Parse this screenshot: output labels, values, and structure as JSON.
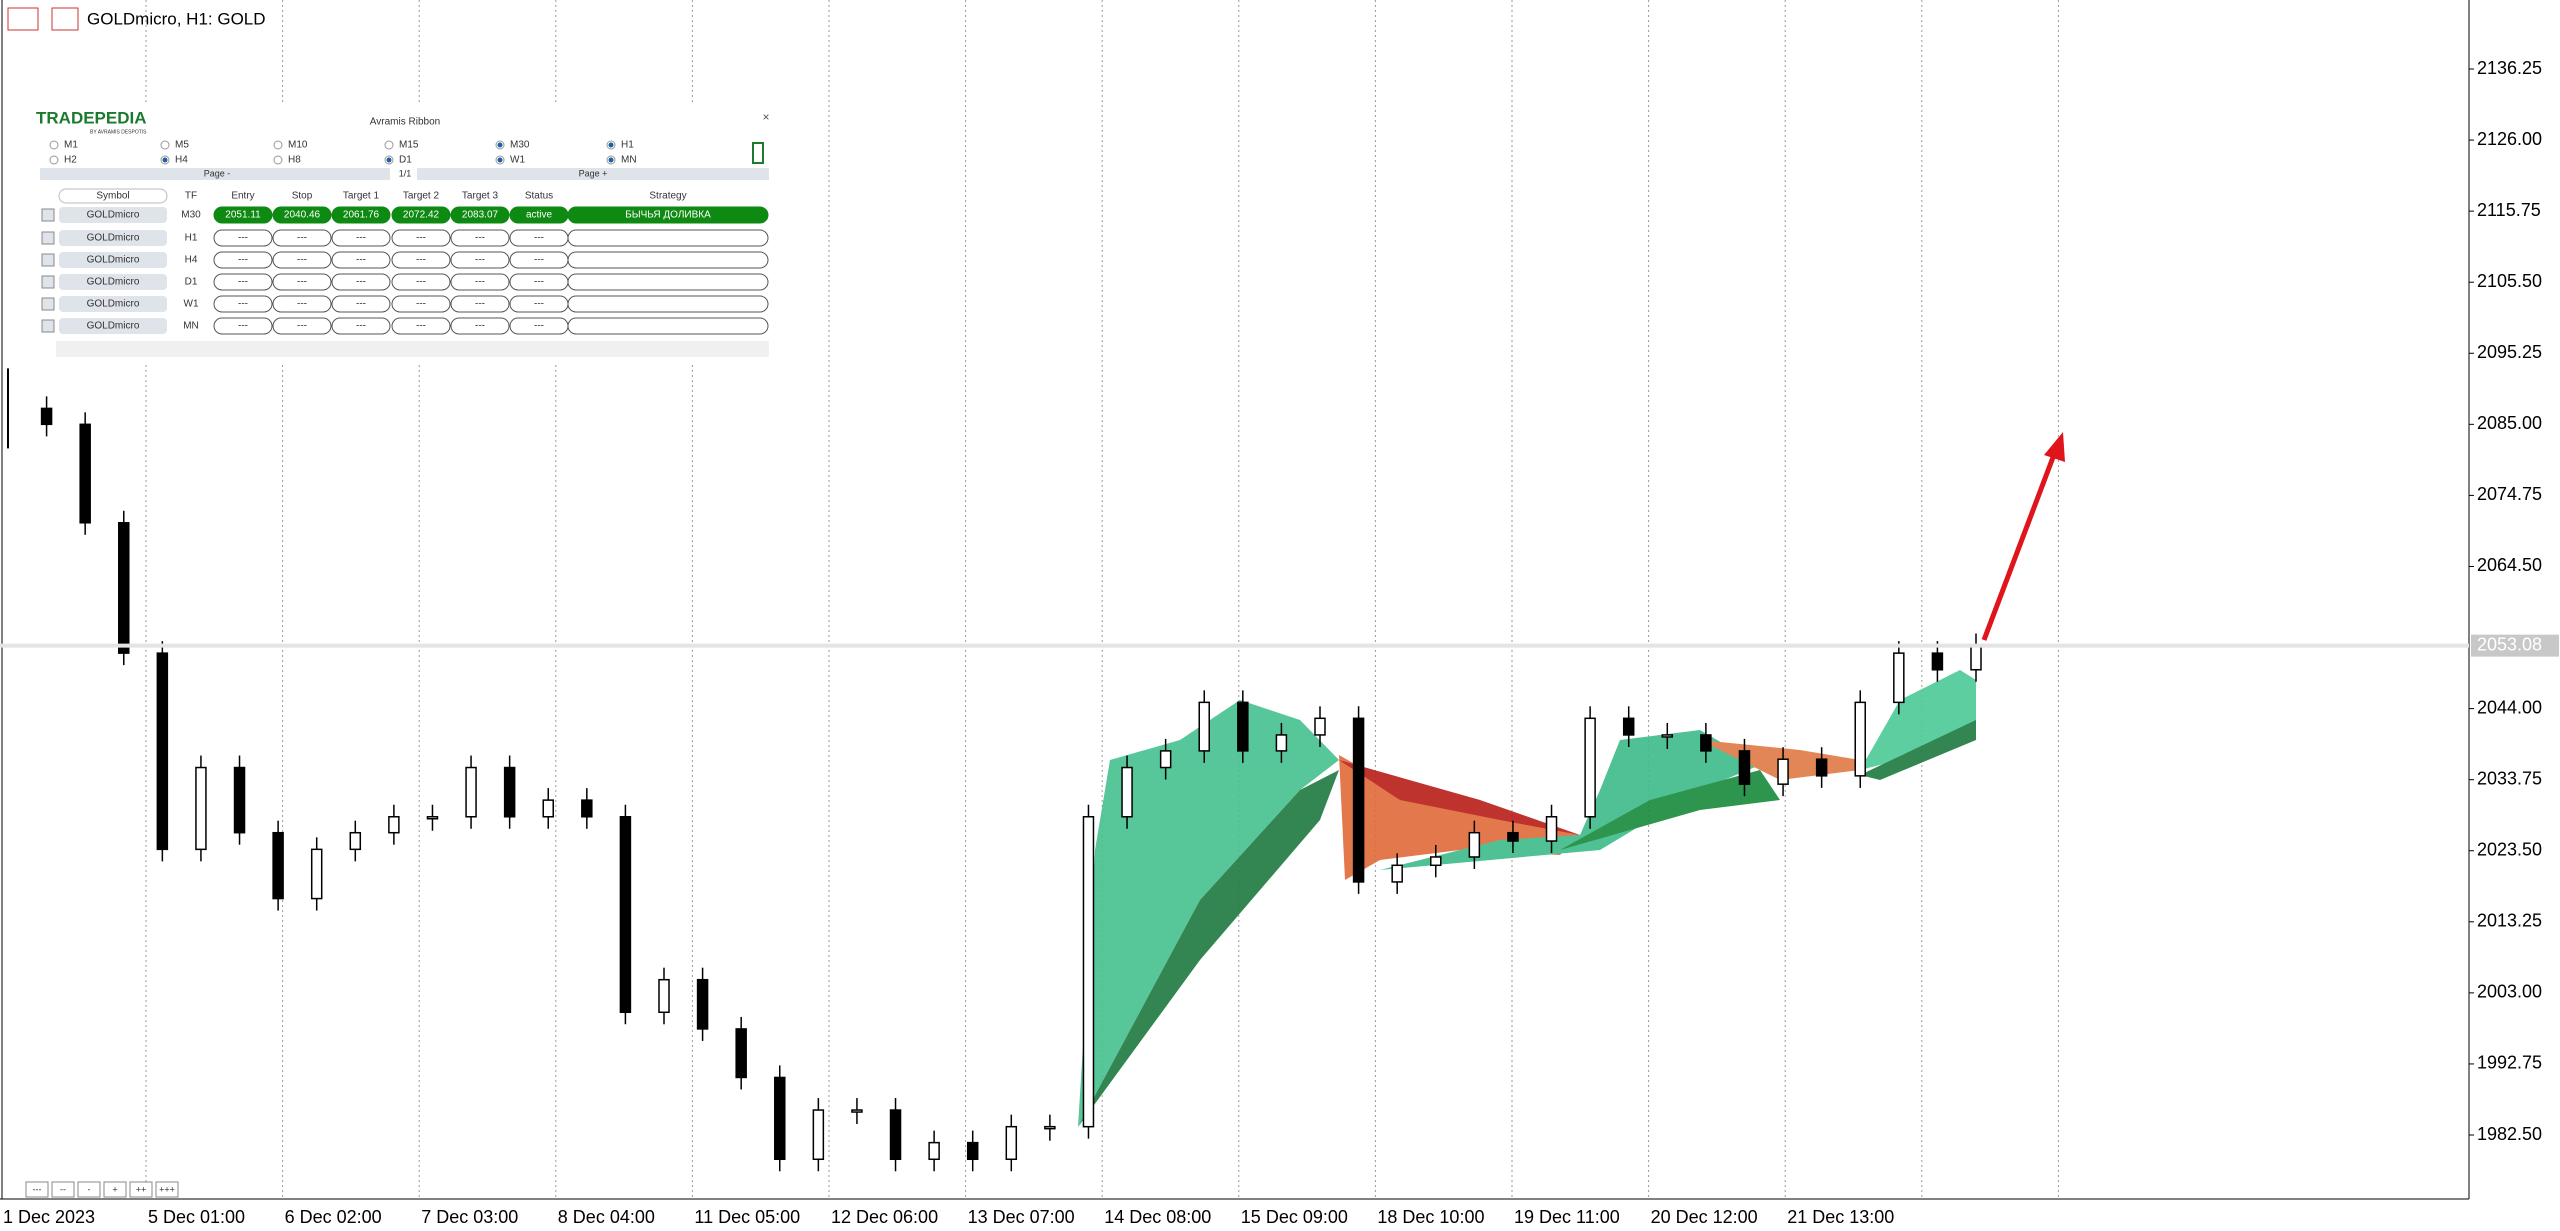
{
  "header": {
    "symbol": "GOLDmicro, H1:  GOLD"
  },
  "panel": {
    "logo": "TRADEPEDIA",
    "logo_sub": "BY AVRAMIS DESPOTIS",
    "title": "Avramis Ribbon",
    "timeframes": [
      {
        "label": "M1",
        "checked": false
      },
      {
        "label": "M5",
        "checked": false
      },
      {
        "label": "M10",
        "checked": false
      },
      {
        "label": "M15",
        "checked": false
      },
      {
        "label": "M30",
        "checked": true
      },
      {
        "label": "H1",
        "checked": true
      },
      {
        "label": "H2",
        "checked": false
      },
      {
        "label": "H4",
        "checked": true
      },
      {
        "label": "H8",
        "checked": false
      },
      {
        "label": "D1",
        "checked": true
      },
      {
        "label": "W1",
        "checked": true
      },
      {
        "label": "MN",
        "checked": true
      }
    ],
    "pager": {
      "prev": "Page -",
      "page": "1/1",
      "next": "Page +"
    },
    "table": {
      "columns": [
        "Symbol",
        "TF",
        "Entry",
        "Stop",
        "Target 1",
        "Target 2",
        "Target 3",
        "Status",
        "Strategy"
      ],
      "rows": [
        {
          "active": true,
          "cells": [
            "GOLDmicro",
            "M30",
            "2051.11",
            "2040.46",
            "2061.76",
            "2072.42",
            "2083.07",
            "active",
            "БЫЧЬЯ ДОЛИВКА"
          ]
        },
        {
          "active": false,
          "cells": [
            "GOLDmicro",
            "H1",
            "---",
            "---",
            "---",
            "---",
            "---",
            "---",
            ""
          ]
        },
        {
          "active": false,
          "cells": [
            "GOLDmicro",
            "H4",
            "---",
            "---",
            "---",
            "---",
            "---",
            "---",
            ""
          ]
        },
        {
          "active": false,
          "cells": [
            "GOLDmicro",
            "D1",
            "---",
            "---",
            "---",
            "---",
            "---",
            "---",
            ""
          ]
        },
        {
          "active": false,
          "cells": [
            "GOLDmicro",
            "W1",
            "---",
            "---",
            "---",
            "---",
            "---",
            "---",
            ""
          ]
        },
        {
          "active": false,
          "cells": [
            "GOLDmicro",
            "MN",
            "---",
            "---",
            "---",
            "---",
            "---",
            "---",
            ""
          ]
        }
      ]
    }
  },
  "price_axis": {
    "labels": [
      "2136.25",
      "2126.00",
      "2115.75",
      "2105.50",
      "2095.25",
      "2085.00",
      "2074.75",
      "2064.50",
      "2044.00",
      "2033.75",
      "2023.50",
      "2013.25",
      "2003.00",
      "1992.75",
      "1982.50"
    ],
    "current": "2053.08"
  },
  "time_axis": {
    "labels": [
      "1 Dec 2023",
      "5 Dec 01:00",
      "6 Dec 02:00",
      "7 Dec 03:00",
      "8 Dec 04:00",
      "11 Dec 05:00",
      "12 Dec 06:00",
      "13 Dec 07:00",
      "14 Dec 08:00",
      "15 Dec 09:00",
      "18 Dec 10:00",
      "19 Dec 11:00",
      "20 Dec 12:00",
      "21 Dec 13:00"
    ]
  },
  "chart": {
    "closes": [
      2087.3,
      2085.0,
      2070.8,
      2052.0,
      2023.7,
      2035.5,
      2026.1,
      2016.6,
      2023.7,
      2026.1,
      2028.4,
      2028.4,
      2035.5,
      2028.4,
      2030.8,
      2028.4,
      2000.2,
      2004.9,
      1997.8,
      1990.8,
      1979.0,
      1986.1,
      1986.1,
      1979.0,
      1981.4,
      1979.0,
      1983.7,
      1983.7,
      2028.4,
      2035.5,
      2037.9,
      2044.9,
      2037.9,
      2040.2,
      2042.6,
      2019.0,
      2021.4,
      2022.6,
      2026.1,
      2024.9,
      2028.4,
      2042.6,
      2040.2,
      2040.2,
      2037.9,
      2033.1,
      2036.7,
      2034.3,
      2044.9,
      2052.0,
      2049.6,
      2053.1
    ]
  },
  "zoom_buttons": [
    "---",
    "--",
    "-",
    "+",
    "++",
    "+++"
  ]
}
